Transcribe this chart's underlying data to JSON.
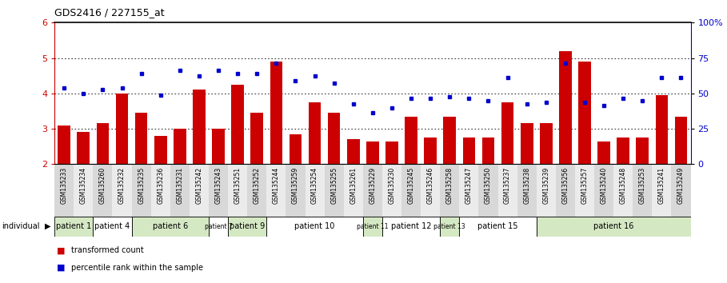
{
  "title": "GDS2416 / 227155_at",
  "samples": [
    "GSM135233",
    "GSM135234",
    "GSM135260",
    "GSM135232",
    "GSM135235",
    "GSM135236",
    "GSM135231",
    "GSM135242",
    "GSM135243",
    "GSM135251",
    "GSM135252",
    "GSM135244",
    "GSM135259",
    "GSM135254",
    "GSM135255",
    "GSM135261",
    "GSM135229",
    "GSM135230",
    "GSM135245",
    "GSM135246",
    "GSM135258",
    "GSM135247",
    "GSM135250",
    "GSM135237",
    "GSM135238",
    "GSM135239",
    "GSM135256",
    "GSM135257",
    "GSM135240",
    "GSM135248",
    "GSM135253",
    "GSM135241",
    "GSM135249"
  ],
  "bar_values": [
    3.1,
    2.9,
    3.15,
    4.0,
    3.45,
    2.8,
    3.0,
    4.1,
    3.0,
    4.25,
    3.45,
    4.9,
    2.85,
    3.75,
    3.45,
    2.7,
    2.65,
    2.65,
    3.35,
    2.75,
    3.35,
    2.75,
    2.75,
    3.75,
    3.15,
    3.15,
    5.2,
    4.9,
    2.65,
    2.75,
    2.75,
    3.95,
    3.35
  ],
  "dot_values": [
    4.15,
    4.0,
    4.1,
    4.15,
    4.55,
    3.95,
    4.65,
    4.5,
    4.65,
    4.55,
    4.55,
    4.85,
    4.35,
    4.5,
    4.3,
    3.7,
    3.45,
    3.6,
    3.85,
    3.85,
    3.9,
    3.85,
    3.8,
    4.45,
    3.7,
    3.75,
    4.85,
    3.75,
    3.65,
    3.85,
    3.8,
    4.45,
    4.45
  ],
  "patients": [
    {
      "label": "patient 1",
      "start": 0,
      "end": 2,
      "color": "#d5e8c4"
    },
    {
      "label": "patient 4",
      "start": 2,
      "end": 4,
      "color": "#ffffff"
    },
    {
      "label": "patient 6",
      "start": 4,
      "end": 8,
      "color": "#d5e8c4"
    },
    {
      "label": "patient 7",
      "start": 8,
      "end": 9,
      "color": "#ffffff"
    },
    {
      "label": "patient 9",
      "start": 9,
      "end": 11,
      "color": "#d5e8c4"
    },
    {
      "label": "patient 10",
      "start": 11,
      "end": 16,
      "color": "#ffffff"
    },
    {
      "label": "patient 11",
      "start": 16,
      "end": 17,
      "color": "#d5e8c4"
    },
    {
      "label": "patient 12",
      "start": 17,
      "end": 20,
      "color": "#ffffff"
    },
    {
      "label": "patient 13",
      "start": 20,
      "end": 21,
      "color": "#d5e8c4"
    },
    {
      "label": "patient 15",
      "start": 21,
      "end": 25,
      "color": "#ffffff"
    },
    {
      "label": "patient 16",
      "start": 25,
      "end": 33,
      "color": "#d5e8c4"
    }
  ],
  "ylim": [
    2,
    6
  ],
  "yticks": [
    2,
    3,
    4,
    5,
    6
  ],
  "y2ticks": [
    0,
    25,
    50,
    75,
    100
  ],
  "y2tick_labels": [
    "0",
    "25",
    "50",
    "75",
    "100%"
  ],
  "bar_color": "#cc0000",
  "dot_color": "#0000cc",
  "bar_bottom": 2.0,
  "legend_items": [
    "transformed count",
    "percentile rank within the sample"
  ],
  "grid_lines": [
    3,
    4,
    5
  ]
}
